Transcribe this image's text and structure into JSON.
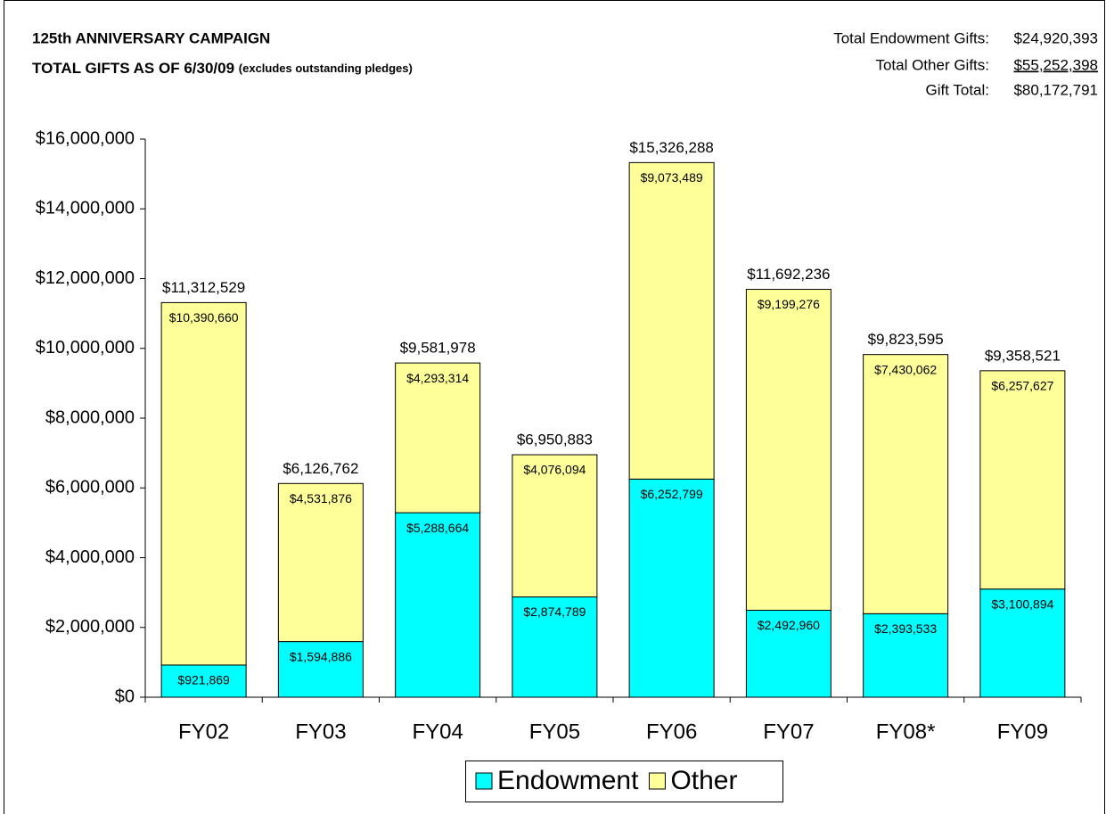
{
  "chart_data": {
    "type": "stacked_bar",
    "title": "125th ANNIVERSARY CAMPAIGN",
    "subtitle": "TOTAL GIFTS AS OF 6/30/09",
    "subtitle_note": "(excludes outstanding pledges)",
    "summary": [
      {
        "label": "Total Endowment Gifts:",
        "amount": "$24,920,393"
      },
      {
        "label": "Total Other Gifts:",
        "amount": "$55,252,398"
      },
      {
        "label": "Gift Total:",
        "amount": "$80,172,791"
      }
    ],
    "categories": [
      "FY02",
      "FY03",
      "FY04",
      "FY05",
      "FY06",
      "FY07",
      "FY08*",
      "FY09"
    ],
    "series": [
      {
        "name": "Endowment",
        "color": "#00ffff",
        "values": [
          921869,
          1594886,
          5288664,
          2874789,
          6252799,
          2492960,
          2393533,
          3100894
        ],
        "value_labels": [
          "$921,869",
          "$1,594,886",
          "$5,288,664",
          "$2,874,789",
          "$6,252,799",
          "$2,492,960",
          "$2,393,533",
          "$3,100,894"
        ]
      },
      {
        "name": "Other",
        "color": "#ffff99",
        "values": [
          10390660,
          4531876,
          4293314,
          4076094,
          9073489,
          9199276,
          7430062,
          6257627
        ],
        "value_labels": [
          "$10,390,660",
          "$4,531,876",
          "$4,293,314",
          "$4,076,094",
          "$9,073,489",
          "$9,199,276",
          "$7,430,062",
          "$6,257,627"
        ]
      }
    ],
    "total_labels": [
      "$11,312,529",
      "$6,126,762",
      "$9,581,978",
      "$6,950,883",
      "$15,326,288",
      "$11,692,236",
      "$9,823,595",
      "$9,358,521"
    ],
    "ylim": [
      0,
      16000000
    ],
    "yticks": [
      {
        "value": 0,
        "label": "$0"
      },
      {
        "value": 2000000,
        "label": "$2,000,000"
      },
      {
        "value": 4000000,
        "label": "$4,000,000"
      },
      {
        "value": 6000000,
        "label": "$6,000,000"
      },
      {
        "value": 8000000,
        "label": "$8,000,000"
      },
      {
        "value": 10000000,
        "label": "$10,000,000"
      },
      {
        "value": 12000000,
        "label": "$12,000,000"
      },
      {
        "value": 14000000,
        "label": "$14,000,000"
      },
      {
        "value": 16000000,
        "label": "$16,000,000"
      }
    ],
    "grid": false,
    "legend": "bottom"
  }
}
